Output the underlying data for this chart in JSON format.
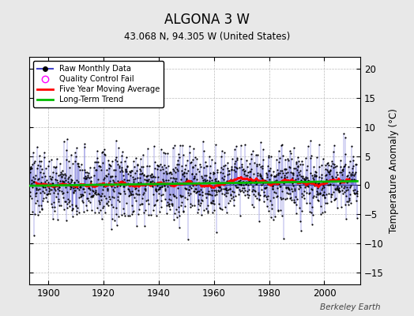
{
  "title": "ALGONA 3 W",
  "subtitle": "43.068 N, 94.305 W (United States)",
  "ylabel": "Temperature Anomaly (°C)",
  "credit": "Berkeley Earth",
  "xlim": [
    1893,
    2013
  ],
  "ylim": [
    -17,
    22
  ],
  "yticks": [
    -15,
    -10,
    -5,
    0,
    5,
    10,
    15,
    20
  ],
  "xticks": [
    1900,
    1920,
    1940,
    1960,
    1980,
    2000
  ],
  "start_year": 1893,
  "end_year": 2012,
  "background_color": "#e8e8e8",
  "plot_bg_color": "#ffffff",
  "raw_color": "#4444cc",
  "raw_marker_color": "#000000",
  "qc_color": "#ff00ff",
  "moving_avg_color": "#ff0000",
  "trend_color": "#00bb00",
  "grid_color": "#aaaaaa",
  "seed": 137,
  "n_months": 1416
}
